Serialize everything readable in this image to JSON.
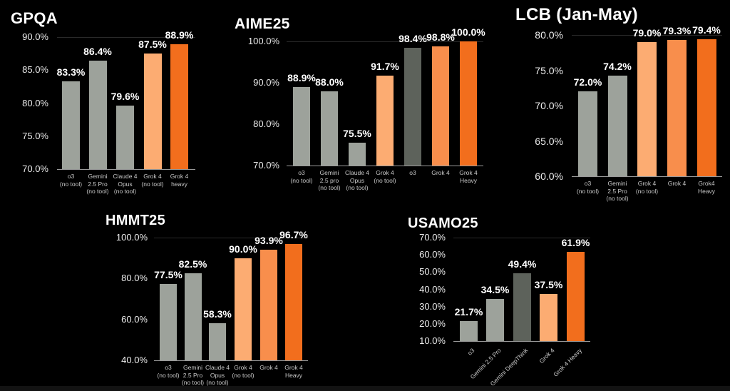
{
  "colors": {
    "gray": "#9da29b",
    "gray_dark": "#5d625b",
    "orange_light": "#fcac72",
    "orange_mid": "#f88e4c",
    "orange_deep": "#f26e1d",
    "background": "#000000",
    "text": "#ffffff"
  },
  "chart_data": [
    {
      "id": "gpqa",
      "type": "bar",
      "title": "GPQA",
      "xlabel": "",
      "ylabel": "",
      "ylim": [
        70,
        90
      ],
      "yticks": [
        90,
        85,
        80,
        75,
        70
      ],
      "ytick_labels": [
        "90.0%",
        "85.0%",
        "80.0%",
        "75.0%",
        "70.0%"
      ],
      "grid": "faint line at top tick only",
      "legend": "none",
      "categories": [
        "o3\n(no tool)",
        "Gemini\n2.5 Pro\n(no tool)",
        "Claude 4\nOpus\n(no tool)",
        "Grok 4\n(no tool)",
        "Grok 4\nheavy"
      ],
      "values": [
        83.3,
        86.4,
        79.6,
        87.5,
        88.9
      ],
      "value_labels": [
        "83.3%",
        "86.4%",
        "79.6%",
        "87.5%",
        "88.9%"
      ],
      "bar_colors": [
        "gray",
        "gray",
        "gray",
        "orange_light",
        "orange_deep"
      ]
    },
    {
      "id": "aime",
      "type": "bar",
      "title": "AIME25",
      "xlabel": "",
      "ylabel": "",
      "ylim": [
        70,
        100
      ],
      "yticks": [
        100,
        90,
        80,
        70
      ],
      "ytick_labels": [
        "100.0%",
        "90.0%",
        "80.0%",
        "70.0%"
      ],
      "grid": "faint line at top tick only",
      "legend": "none",
      "categories": [
        "o3\n(no tool)",
        "Gemini\n2.5 pro\n(no tool)",
        "Claude 4\nOpus\n(no tool)",
        "Grok 4\n(no tool)",
        "o3",
        "Grok 4",
        "Grok 4\nHeavy"
      ],
      "values": [
        88.9,
        88.0,
        75.5,
        91.7,
        98.4,
        98.8,
        100.0
      ],
      "value_labels": [
        "88.9%",
        "88.0%",
        "75.5%",
        "91.7%",
        "98.4%",
        "98.8%",
        "100.0%"
      ],
      "bar_colors": [
        "gray",
        "gray",
        "gray",
        "orange_light",
        "gray_dark",
        "orange_mid",
        "orange_deep"
      ]
    },
    {
      "id": "lcb",
      "type": "bar",
      "title": "LCB (Jan-May)",
      "xlabel": "",
      "ylabel": "",
      "ylim": [
        60,
        80
      ],
      "yticks": [
        80,
        75,
        70,
        65,
        60
      ],
      "ytick_labels": [
        "80.0%",
        "75.0%",
        "70.0%",
        "65.0%",
        "60.0%"
      ],
      "grid": "faint line at top tick only",
      "legend": "none",
      "categories": [
        "o3\n(no tool)",
        "Gemini\n2.5 Pro\n(no tool)",
        "Grok 4\n(no tool)",
        "Grok 4",
        "Grok4\nHeavy"
      ],
      "values": [
        72.0,
        74.2,
        79.0,
        79.3,
        79.4
      ],
      "value_labels": [
        "72.0%",
        "74.2%",
        "79.0%",
        "79.3%",
        "79.4%"
      ],
      "bar_colors": [
        "gray",
        "gray",
        "orange_light",
        "orange_mid",
        "orange_deep"
      ]
    },
    {
      "id": "hmmt",
      "type": "bar",
      "title": "HMMT25",
      "xlabel": "",
      "ylabel": "",
      "ylim": [
        40,
        100
      ],
      "yticks": [
        100,
        80,
        60,
        40
      ],
      "ytick_labels": [
        "100.0%",
        "80.0%",
        "60.0%",
        "40.0%"
      ],
      "grid": "faint line at top tick only",
      "legend": "none",
      "categories": [
        "o3\n(no tool)",
        "Gemini\n2.5 Pro\n(no tool)",
        "Claude 4\nOpus\n(no tool)",
        "Grok 4\n(no tool)",
        "Grok 4",
        "Grok 4\nHeavy"
      ],
      "values": [
        77.5,
        82.5,
        58.3,
        90.0,
        93.9,
        96.7
      ],
      "value_labels": [
        "77.5%",
        "82.5%",
        "58.3%",
        "90.0%",
        "93.9%",
        "96.7%"
      ],
      "bar_colors": [
        "gray",
        "gray",
        "gray",
        "orange_light",
        "orange_mid",
        "orange_deep"
      ]
    },
    {
      "id": "usamo",
      "type": "bar",
      "title": "USAMO25",
      "xlabel": "",
      "ylabel": "",
      "ylim": [
        10,
        70
      ],
      "yticks": [
        70,
        60,
        50,
        40,
        30,
        20,
        10
      ],
      "ytick_labels": [
        "70.0%",
        "60.0%",
        "50.0%",
        "40.0%",
        "30.0%",
        "20.0%",
        "10.0%"
      ],
      "grid": "faint line at top tick only",
      "legend": "none",
      "xtick_rotation": 45,
      "categories": [
        "o3",
        "Gemini 2.5 Pro",
        "Gemini DeepThink",
        "Grok 4",
        "Grok 4 Heavy"
      ],
      "values": [
        21.7,
        34.5,
        49.4,
        37.5,
        61.9
      ],
      "value_labels": [
        "21.7%",
        "34.5%",
        "49.4%",
        "37.5%",
        "61.9%"
      ],
      "bar_colors": [
        "gray",
        "gray",
        "gray_dark",
        "orange_light",
        "orange_deep"
      ]
    }
  ]
}
